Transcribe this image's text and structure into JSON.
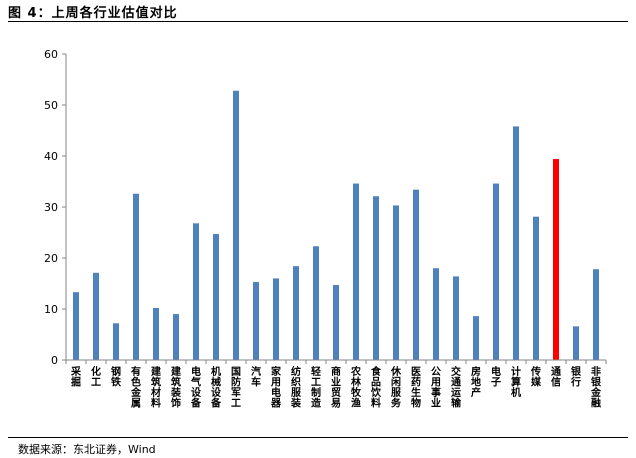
{
  "figure": {
    "title": "图 4：上周各行业估值对比",
    "source": "数据来源：东北证券，Wind"
  },
  "colors": {
    "bar": "#4f81bd",
    "highlight": "#ff0000",
    "axis": "#868686"
  },
  "chart_data": {
    "type": "bar",
    "categories": [
      "采掘",
      "化工",
      "钢铁",
      "有色金属",
      "建筑材料",
      "建筑装饰",
      "电气设备",
      "机械设备",
      "国防军工",
      "汽车",
      "家用电器",
      "纺织服装",
      "轻工制造",
      "商业贸易",
      "农林牧渔",
      "食品饮料",
      "休闲服务",
      "医药生物",
      "公用事业",
      "交通运输",
      "房地产",
      "电子",
      "计算机",
      "传媒",
      "通信",
      "银行",
      "非银金融"
    ],
    "values": [
      13.3,
      17.1,
      7.2,
      32.6,
      10.2,
      9.0,
      26.8,
      24.7,
      52.8,
      15.3,
      16.0,
      18.4,
      22.3,
      14.7,
      34.6,
      32.1,
      30.3,
      33.4,
      18.0,
      16.4,
      8.6,
      34.6,
      45.8,
      28.1,
      39.4,
      6.6,
      17.8
    ],
    "highlight": "通信",
    "ylim": [
      0,
      60
    ],
    "yticks": [
      0,
      10,
      20,
      30,
      40,
      50,
      60
    ],
    "xlabel": "",
    "ylabel": "",
    "grid": false,
    "legend": "none"
  }
}
